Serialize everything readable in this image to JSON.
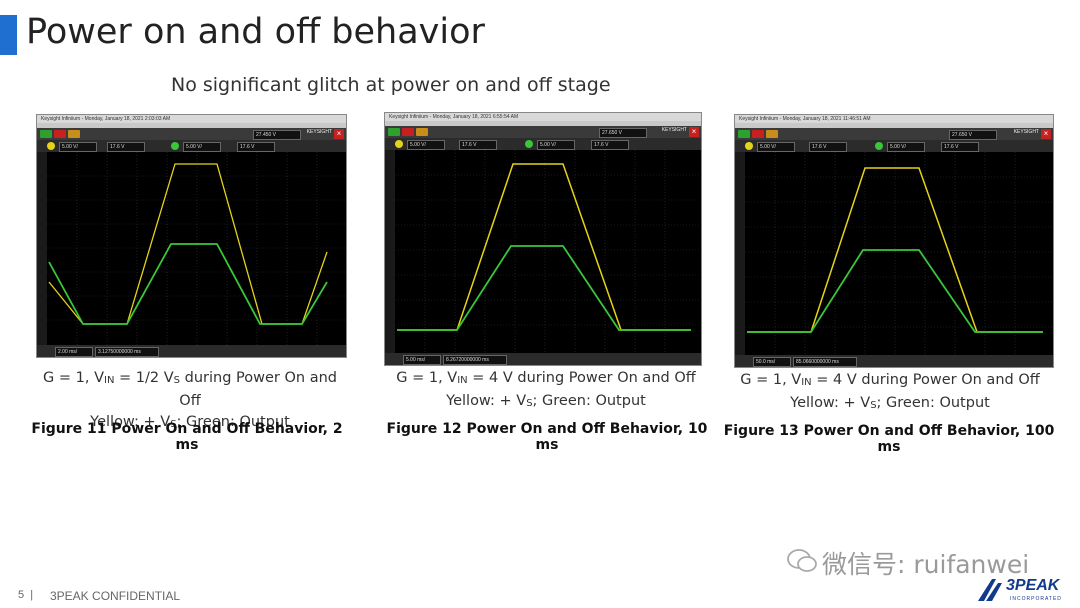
{
  "slide": {
    "title": "Power on and off behavior",
    "subtitle": "No significant glitch at power on and off stage",
    "page_number": "5",
    "footer": "3PEAK CONFIDENTIAL",
    "watermark": "微信号: ruifanwei",
    "logo_text": "3PEAK",
    "logo_sub": "INCORPORATED"
  },
  "figures": [
    {
      "scope_header": "Keysight Infiniium - Monday, January 18, 2021 2:03:03 AM",
      "timebase": "2.00 ms/",
      "position": "3.12750000000 ms",
      "ch1_scale": "5.00 V/",
      "ch1_offset": "17.6 V",
      "ch2_scale": "5.00 V/",
      "ch2_offset": "17.6 V",
      "trigger": "27.450 V",
      "brand": "KEYSIGHT",
      "caption_line1_prefix": "G = 1, V",
      "caption_line1_sub": "IN",
      "caption_line1_mid": " = 1/2 V",
      "caption_line1_sub2": "S",
      "caption_line1_suffix": " during Power On and Off",
      "caption_line2_prefix": "Yellow: + V",
      "caption_line2_sub": "S",
      "caption_line2_suffix": "; Green: Output",
      "figure_title": "Figure 11 Power On and Off Behavior, 2 ms"
    },
    {
      "scope_header": "Keysight Infiniium - Monday, January 18, 2021 6:55:54 AM",
      "timebase": "5.00 ms/",
      "position": "8.26720000000 ms",
      "ch1_scale": "5.00 V/",
      "ch1_offset": "17.6 V",
      "ch2_scale": "5.00 V/",
      "ch2_offset": "17.6 V",
      "trigger": "27.650 V",
      "brand": "KEYSIGHT",
      "caption_line1_prefix": "G = 1, V",
      "caption_line1_sub": "IN",
      "caption_line1_mid": " = 4 V during Power On and Off",
      "caption_line1_sub2": "",
      "caption_line1_suffix": "",
      "caption_line2_prefix": "Yellow: + V",
      "caption_line2_sub": "S",
      "caption_line2_suffix": "; Green: Output",
      "figure_title": "Figure 12 Power On and Off Behavior, 10 ms"
    },
    {
      "scope_header": "Keysight Infiniium - Monday, January 18, 2021 11:46:51 AM",
      "timebase": "50.0 ms/",
      "position": "85.0660000000 ms",
      "ch1_scale": "5.00 V/",
      "ch1_offset": "17.6 V",
      "ch2_scale": "5.00 V/",
      "ch2_offset": "17.6 V",
      "trigger": "27.650 V",
      "brand": "KEYSIGHT",
      "caption_line1_prefix": "G = 1, V",
      "caption_line1_sub": "IN",
      "caption_line1_mid": " = 4 V during Power On and Off",
      "caption_line1_sub2": "",
      "caption_line1_suffix": "",
      "caption_line2_prefix": "Yellow: + V",
      "caption_line2_sub": "S",
      "caption_line2_suffix": "; Green: Output",
      "figure_title": "Figure 13 Power On and Off Behavior, 100 ms"
    }
  ],
  "colors": {
    "accent": "#1e6fd0",
    "yellow_trace": "#e6d319",
    "green_trace": "#39c739",
    "logo": "#123a8c"
  }
}
